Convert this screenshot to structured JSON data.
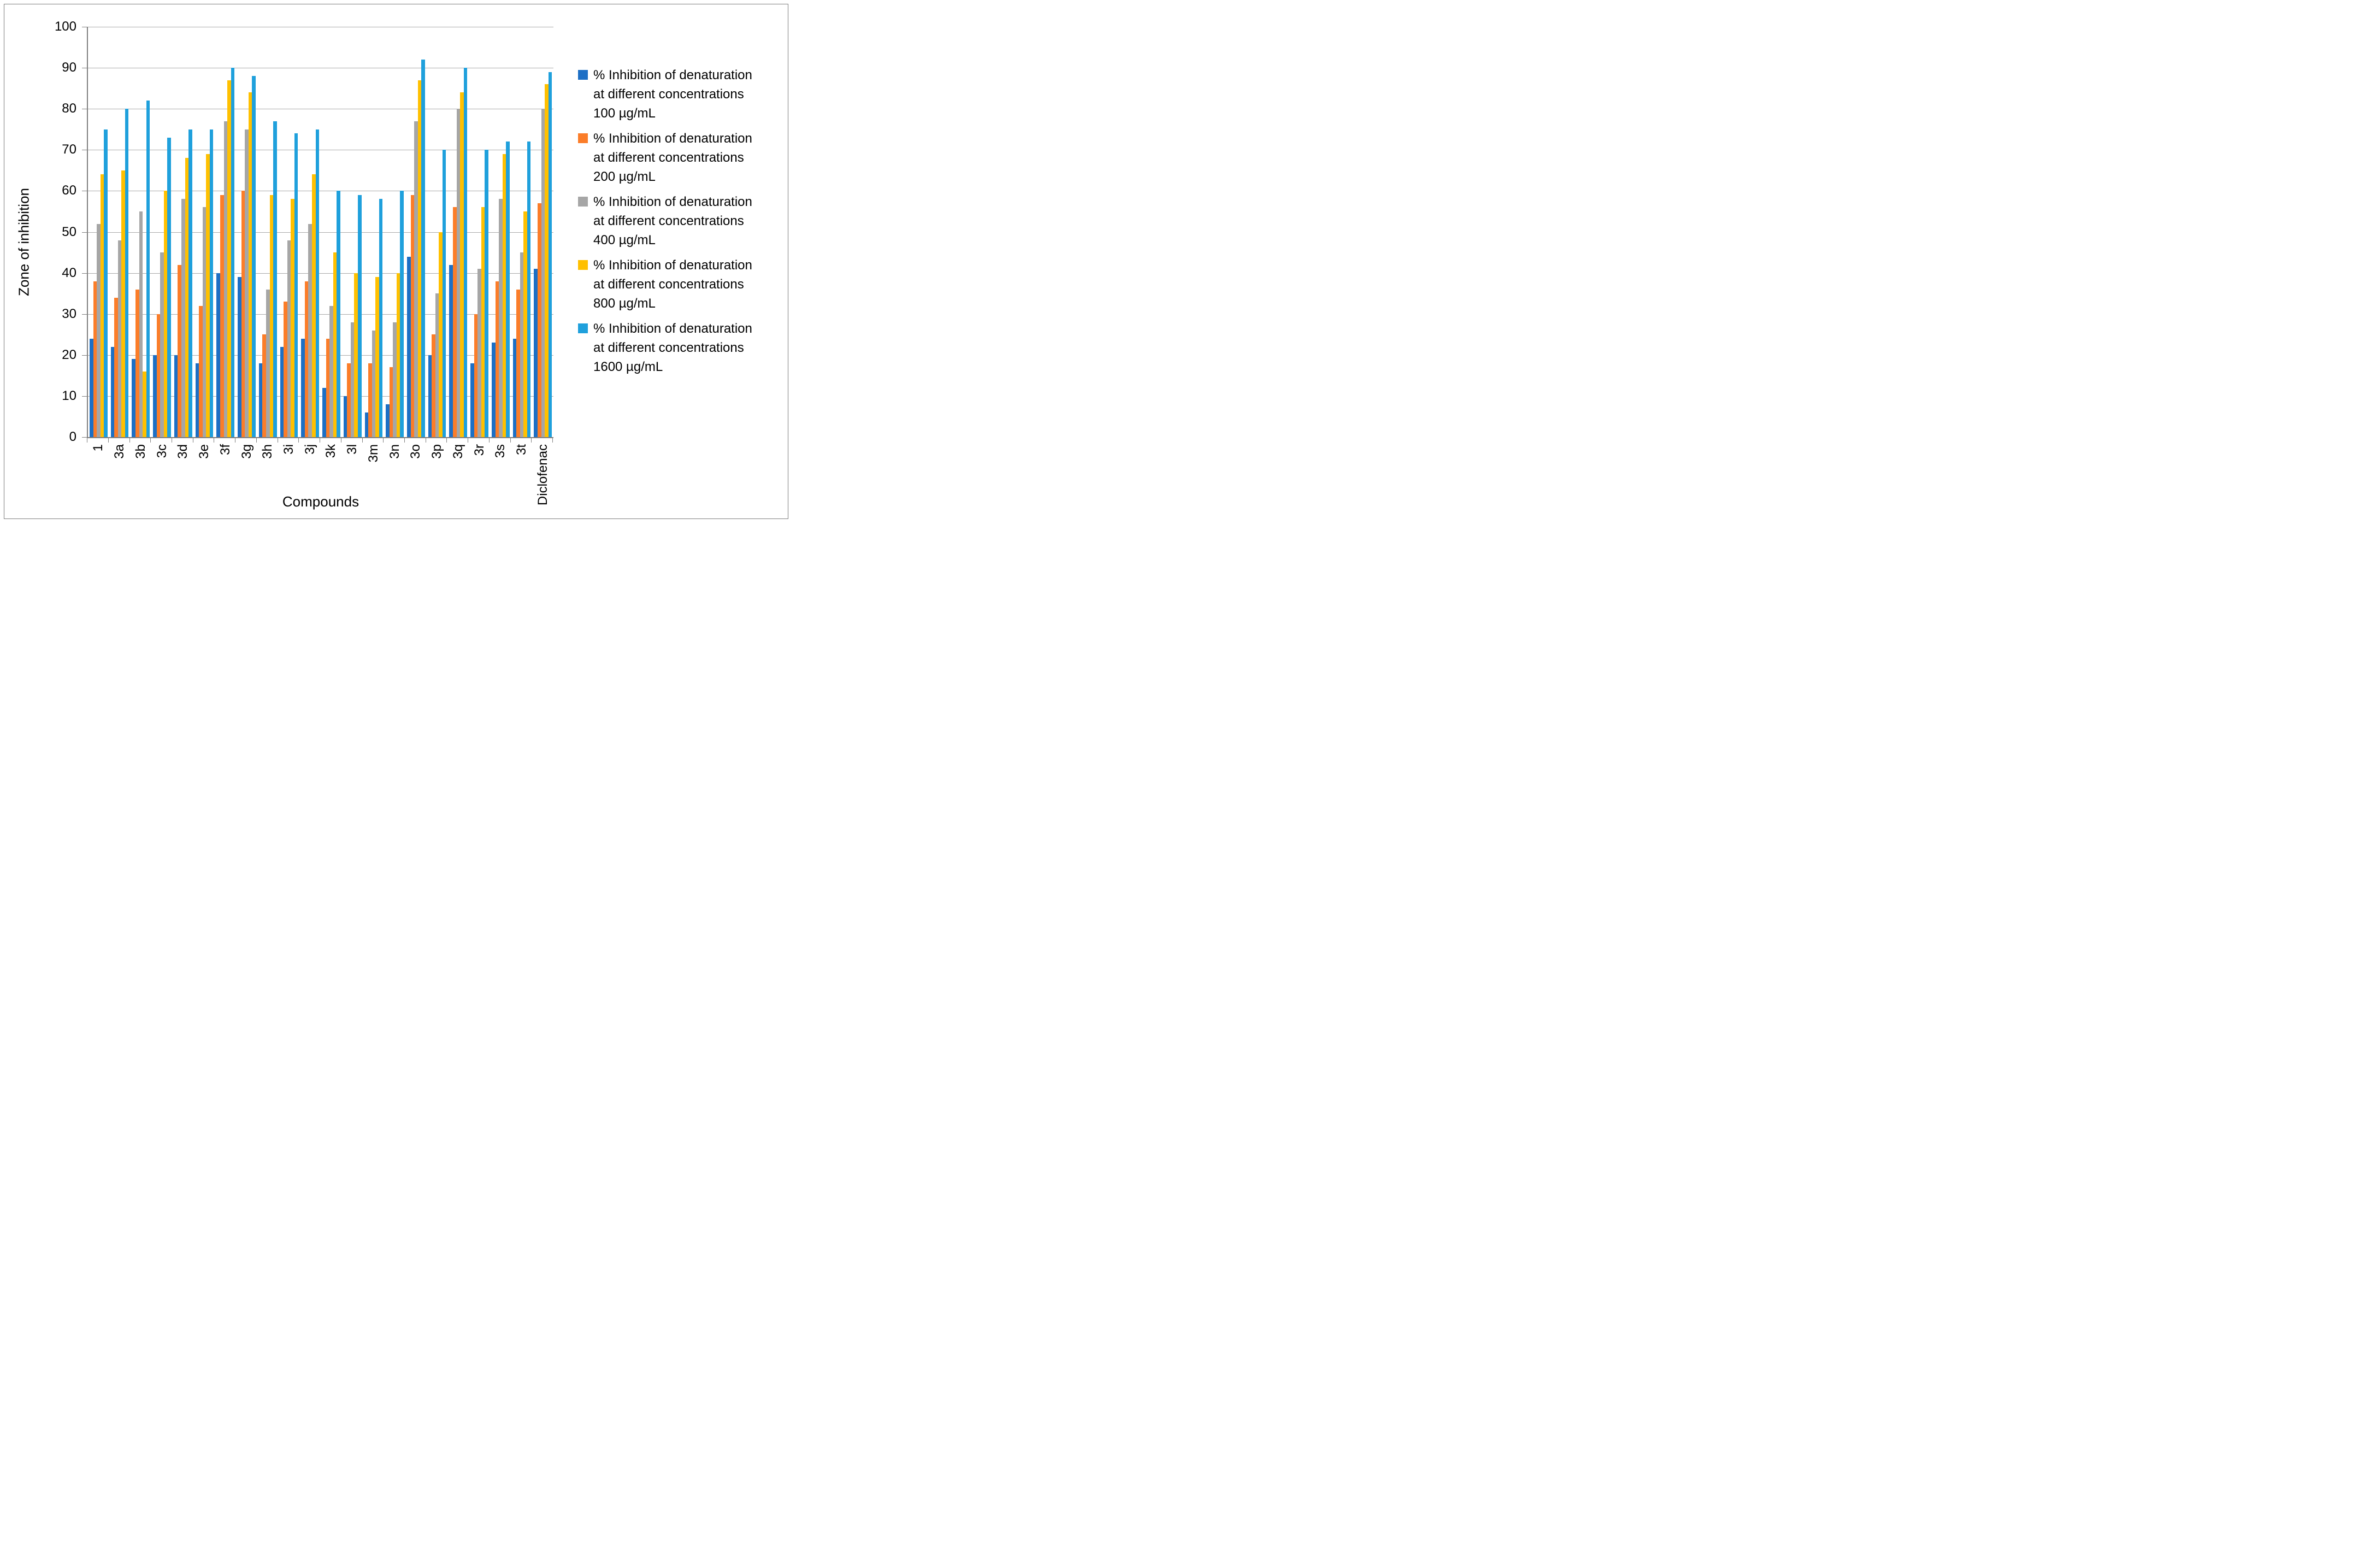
{
  "figure": {
    "background": "#FFFFFF",
    "border_color": "#7F7F7F",
    "axis_color": "#808080",
    "gridline_color": "#ABABAB"
  },
  "chart_data": {
    "type": "bar",
    "title": "",
    "xlabel": "Compounds",
    "ylabel": "Zone of inhibition",
    "ylim": [
      0,
      100
    ],
    "yticks": [
      0,
      10,
      20,
      30,
      40,
      50,
      60,
      70,
      80,
      90,
      100
    ],
    "grid": "horizontal",
    "legend_position": "right",
    "categories": [
      "1",
      "3a",
      "3b",
      "3c",
      "3d",
      "3e",
      "3f",
      "3g",
      "3h",
      "3i",
      "3j",
      "3k",
      "3l",
      "3m",
      "3n",
      "3o",
      "3p",
      "3q",
      "3r",
      "3s",
      "3t",
      "Diclofenac"
    ],
    "series": [
      {
        "name": "% Inhibition of denaturation at different concentrations 100 µg/mL",
        "legend_lines": [
          "% Inhibition of denaturation",
          "at different concentrations",
          "100 µg/mL"
        ],
        "color": "#1D6FC5",
        "values": [
          24,
          22,
          19,
          20,
          20,
          18,
          40,
          39,
          18,
          22,
          24,
          12,
          10,
          6,
          8,
          44,
          20,
          42,
          18,
          23,
          24,
          41
        ]
      },
      {
        "name": "% Inhibition of denaturation at different concentrations 200 µg/mL",
        "legend_lines": [
          "% Inhibition of denaturation",
          "at different concentrations",
          "200 µg/mL"
        ],
        "color": "#FB7D29",
        "values": [
          38,
          34,
          36,
          30,
          42,
          32,
          59,
          60,
          25,
          33,
          38,
          24,
          18,
          18,
          17,
          59,
          25,
          56,
          30,
          38,
          36,
          57
        ]
      },
      {
        "name": "% Inhibition of denaturation at different concentrations 400 µg/mL",
        "legend_lines": [
          "% Inhibition of denaturation",
          "at different concentrations",
          "400 µg/mL"
        ],
        "color": "#A6A6A6",
        "values": [
          52,
          48,
          55,
          45,
          58,
          56,
          77,
          75,
          36,
          48,
          52,
          32,
          28,
          26,
          28,
          77,
          35,
          80,
          41,
          58,
          45,
          80
        ]
      },
      {
        "name": "% Inhibition of denaturation at different concentrations 800 µg/mL",
        "legend_lines": [
          "% Inhibition of denaturation",
          "at different concentrations",
          "800 µg/mL"
        ],
        "color": "#FFC000",
        "values": [
          64,
          65,
          16,
          60,
          68,
          69,
          87,
          84,
          59,
          58,
          64,
          45,
          40,
          39,
          40,
          87,
          50,
          84,
          56,
          69,
          55,
          86
        ]
      },
      {
        "name": "% Inhibition of denaturation at different concentrations 1600 µg/mL",
        "legend_lines": [
          "% Inhibition of denaturation",
          "at different concentrations",
          "1600 µg/mL"
        ],
        "color": "#1FA0DC",
        "values": [
          75,
          80,
          82,
          73,
          75,
          75,
          90,
          88,
          77,
          74,
          75,
          60,
          59,
          58,
          60,
          92,
          70,
          90,
          70,
          72,
          72,
          89
        ]
      }
    ]
  }
}
